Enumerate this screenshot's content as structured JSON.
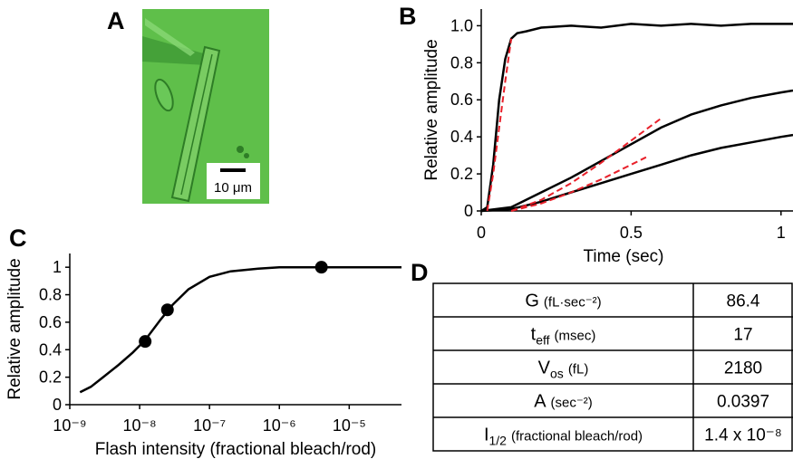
{
  "panel_labels": [
    "A",
    "B",
    "C",
    "D"
  ],
  "image": {
    "scale_label": "10 μm"
  },
  "chart_data": [
    {
      "type": "line",
      "xlabel": "Time (sec)",
      "ylabel": "Relative amplitude",
      "xlim": [
        0,
        1.04
      ],
      "ylim": [
        0,
        1.09
      ],
      "xticks": [
        0,
        0.5,
        1
      ],
      "yticks": [
        0,
        0.2,
        0.4,
        0.6,
        0.8,
        {
          "value": 1,
          "label": "1.0"
        }
      ],
      "series": [
        {
          "color": "#000000",
          "style": "solid",
          "x": [
            0,
            0.02,
            0.04,
            0.06,
            0.08,
            0.1,
            0.12,
            0.15,
            0.2,
            0.3,
            0.4,
            0.5,
            0.6,
            0.7,
            0.8,
            0.9,
            1.0,
            1.04
          ],
          "values": [
            0,
            0.02,
            0.25,
            0.6,
            0.82,
            0.93,
            0.96,
            0.97,
            0.99,
            1.0,
            0.99,
            1.01,
            1.0,
            1.01,
            1.0,
            1.01,
            1.01,
            1.01
          ]
        },
        {
          "color": "#000000",
          "style": "solid",
          "x": [
            0,
            0.1,
            0.2,
            0.3,
            0.4,
            0.5,
            0.6,
            0.7,
            0.8,
            0.9,
            1.0,
            1.04
          ],
          "values": [
            0,
            0.02,
            0.1,
            0.18,
            0.27,
            0.36,
            0.45,
            0.52,
            0.57,
            0.61,
            0.64,
            0.65
          ]
        },
        {
          "color": "#000000",
          "style": "solid",
          "x": [
            0,
            0.1,
            0.2,
            0.3,
            0.4,
            0.5,
            0.6,
            0.7,
            0.8,
            0.9,
            1.0,
            1.04
          ],
          "values": [
            0,
            0.01,
            0.05,
            0.1,
            0.15,
            0.2,
            0.25,
            0.3,
            0.34,
            0.37,
            0.4,
            0.41
          ]
        },
        {
          "color": "#e8202a",
          "style": "dashed",
          "x": [
            0.02,
            0.04,
            0.06,
            0.08,
            0.1
          ],
          "values": [
            0,
            0.2,
            0.45,
            0.7,
            0.93
          ]
        },
        {
          "color": "#e8202a",
          "style": "dashed",
          "x": [
            0.1,
            0.2,
            0.3,
            0.4,
            0.5,
            0.6
          ],
          "values": [
            0,
            0.06,
            0.15,
            0.26,
            0.38,
            0.5
          ]
        },
        {
          "color": "#e8202a",
          "style": "dashed",
          "x": [
            0.1,
            0.2,
            0.3,
            0.4,
            0.5,
            0.55
          ],
          "values": [
            0,
            0.04,
            0.1,
            0.17,
            0.25,
            0.29
          ]
        }
      ]
    },
    {
      "type": "line",
      "xlabel": "Flash intensity (fractional bleach/rod)",
      "ylabel": "Relative amplitude",
      "xscale": "log",
      "xlim": [
        1e-09,
        5.6e-05
      ],
      "ylim": [
        0,
        1.1
      ],
      "xticks": [
        {
          "value": 1e-09,
          "label": "10⁻⁹"
        },
        {
          "value": 1e-08,
          "label": "10⁻⁸"
        },
        {
          "value": 1e-07,
          "label": "10⁻⁷"
        },
        {
          "value": 1e-06,
          "label": "10⁻⁶"
        },
        {
          "value": 1e-05,
          "label": "10⁻⁵"
        }
      ],
      "yticks": [
        0,
        0.2,
        0.4,
        0.6,
        0.8,
        1
      ],
      "series": [
        {
          "color": "#000000",
          "marker": "none",
          "x": [
            1.4e-09,
            2e-09,
            3e-09,
            5e-09,
            8e-09,
            1.2e-08,
            2e-08,
            3e-08,
            5e-08,
            1e-07,
            2e-07,
            5e-07,
            1e-06,
            3e-06,
            1e-05,
            5.6e-05
          ],
          "values": [
            0.09,
            0.13,
            0.2,
            0.29,
            0.38,
            0.47,
            0.62,
            0.73,
            0.84,
            0.93,
            0.97,
            0.99,
            1.0,
            1.0,
            1.0,
            1.0
          ]
        },
        {
          "color": "#000000",
          "marker": "circle",
          "x": [
            1.2e-08,
            2.5e-08,
            4e-06
          ],
          "values": [
            0.46,
            0.69,
            1.0
          ]
        }
      ]
    }
  ],
  "table": {
    "rows": [
      {
        "name": "G",
        "units": "(fL·sec⁻²)",
        "value": 86.4
      },
      {
        "name": "t",
        "sub": "eff",
        "units": "(msec)",
        "value": 17
      },
      {
        "name": "V",
        "sub": "os",
        "units": "(fL)",
        "value": 2180
      },
      {
        "name": "A",
        "units": "(sec⁻²)",
        "value": 0.0397
      },
      {
        "name": "I",
        "sub": "1/2",
        "units": "(fractional bleach/rod)",
        "value": "1.4 x 10⁻⁸"
      }
    ]
  }
}
